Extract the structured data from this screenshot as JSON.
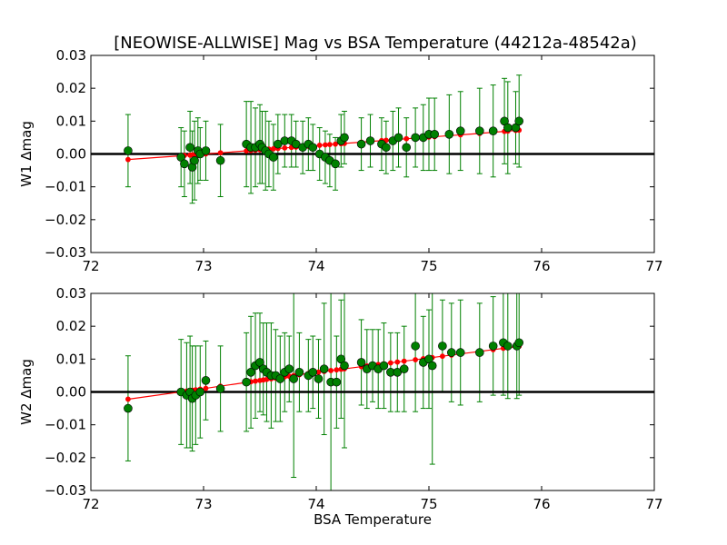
{
  "chart_data": {
    "type": "scatter",
    "title": "[NEOWISE-ALLWISE] Mag vs BSA Temperature (44212a-48542a)",
    "xlabel": "BSA Temperature",
    "xlim": [
      72,
      77
    ],
    "xticks": [
      "72",
      "73",
      "74",
      "75",
      "76",
      "77"
    ],
    "colors": {
      "points": "#008000",
      "errorbars": "#008000",
      "fit": "#ff0000",
      "zero_line": "#000000"
    },
    "panels": [
      {
        "ylabel": "W1 Δmag",
        "ylim": [
          -0.03,
          0.03
        ],
        "yticks": [
          "−0.03",
          "−0.02",
          "−0.01",
          "0.00",
          "0.01",
          "0.02",
          "0.03"
        ],
        "points": [
          [
            72.33,
            0.001,
            0.011
          ],
          [
            72.8,
            -0.001,
            0.009
          ],
          [
            72.83,
            -0.003,
            0.01
          ],
          [
            72.88,
            0.002,
            0.011
          ],
          [
            72.9,
            -0.004,
            0.011
          ],
          [
            72.92,
            -0.002,
            0.012
          ],
          [
            72.95,
            0.001,
            0.01
          ],
          [
            72.97,
            0.0,
            0.008
          ],
          [
            73.02,
            0.001,
            0.009
          ],
          [
            73.15,
            -0.002,
            0.011
          ],
          [
            73.38,
            0.003,
            0.013
          ],
          [
            73.42,
            0.002,
            0.014
          ],
          [
            73.46,
            0.002,
            0.012
          ],
          [
            73.5,
            0.003,
            0.012
          ],
          [
            73.52,
            0.002,
            0.011
          ],
          [
            73.55,
            0.001,
            0.012
          ],
          [
            73.58,
            0.0,
            0.01
          ],
          [
            73.62,
            -0.001,
            0.01
          ],
          [
            73.66,
            0.003,
            0.009
          ],
          [
            73.72,
            0.004,
            0.008
          ],
          [
            73.78,
            0.004,
            0.008
          ],
          [
            73.82,
            0.003,
            0.007
          ],
          [
            73.88,
            0.002,
            0.008
          ],
          [
            73.93,
            0.003,
            0.008
          ],
          [
            73.97,
            0.002,
            0.007
          ],
          [
            74.03,
            0.0,
            0.008
          ],
          [
            74.08,
            -0.001,
            0.008
          ],
          [
            74.12,
            -0.002,
            0.008
          ],
          [
            74.17,
            -0.003,
            0.008
          ],
          [
            74.22,
            0.004,
            0.008
          ],
          [
            74.25,
            0.005,
            0.008
          ],
          [
            74.4,
            0.003,
            0.008
          ],
          [
            74.48,
            0.004,
            0.008
          ],
          [
            74.58,
            0.003,
            0.008
          ],
          [
            74.62,
            0.002,
            0.008
          ],
          [
            74.68,
            0.004,
            0.009
          ],
          [
            74.73,
            0.005,
            0.009
          ],
          [
            74.8,
            0.002,
            0.009
          ],
          [
            74.88,
            0.005,
            0.009
          ],
          [
            74.95,
            0.005,
            0.01
          ],
          [
            75.0,
            0.006,
            0.011
          ],
          [
            75.05,
            0.006,
            0.011
          ],
          [
            75.18,
            0.006,
            0.012
          ],
          [
            75.28,
            0.007,
            0.012
          ],
          [
            75.45,
            0.007,
            0.013
          ],
          [
            75.57,
            0.007,
            0.014
          ],
          [
            75.67,
            0.01,
            0.013
          ],
          [
            75.7,
            0.008,
            0.014
          ],
          [
            75.77,
            0.008,
            0.011
          ],
          [
            75.8,
            0.01,
            0.014
          ]
        ],
        "fit": [
          [
            72.33,
            -0.0017
          ],
          [
            72.9,
            -0.0003
          ],
          [
            73.4,
            0.001
          ],
          [
            73.9,
            0.0023
          ],
          [
            74.4,
            0.0036
          ],
          [
            74.9,
            0.0049
          ],
          [
            75.4,
            0.0061
          ],
          [
            75.82,
            0.0073
          ]
        ]
      },
      {
        "ylabel": "W2 Δmag",
        "ylim": [
          -0.03,
          0.03
        ],
        "yticks": [
          "−0.03",
          "−0.02",
          "−0.01",
          "0.00",
          "0.01",
          "0.02",
          "0.03"
        ],
        "points": [
          [
            72.33,
            -0.005,
            0.016
          ],
          [
            72.8,
            0.0,
            0.016
          ],
          [
            72.85,
            -0.001,
            0.016
          ],
          [
            72.88,
            0.0,
            0.017
          ],
          [
            72.9,
            -0.002,
            0.016
          ],
          [
            72.93,
            -0.001,
            0.015
          ],
          [
            72.97,
            0.0,
            0.014
          ],
          [
            73.02,
            0.0035,
            0.012
          ],
          [
            73.15,
            0.001,
            0.013
          ],
          [
            73.38,
            0.003,
            0.015
          ],
          [
            73.42,
            0.006,
            0.017
          ],
          [
            73.46,
            0.008,
            0.016
          ],
          [
            73.5,
            0.009,
            0.015
          ],
          [
            73.53,
            0.007,
            0.014
          ],
          [
            73.56,
            0.006,
            0.015
          ],
          [
            73.6,
            0.005,
            0.016
          ],
          [
            73.64,
            0.005,
            0.014
          ],
          [
            73.68,
            0.004,
            0.013
          ],
          [
            73.72,
            0.006,
            0.012
          ],
          [
            73.76,
            0.007,
            0.01
          ],
          [
            73.8,
            0.004,
            0.03
          ],
          [
            73.85,
            0.006,
            0.012
          ],
          [
            73.93,
            0.005,
            0.011
          ],
          [
            73.97,
            0.006,
            0.011
          ],
          [
            74.02,
            0.004,
            0.012
          ],
          [
            74.07,
            0.007,
            0.02
          ],
          [
            74.13,
            0.003,
            0.035
          ],
          [
            74.18,
            0.003,
            0.014
          ],
          [
            74.22,
            0.01,
            0.018
          ],
          [
            74.25,
            0.008,
            0.025
          ],
          [
            74.4,
            0.009,
            0.013
          ],
          [
            74.45,
            0.007,
            0.012
          ],
          [
            74.5,
            0.008,
            0.011
          ],
          [
            74.55,
            0.007,
            0.012
          ],
          [
            74.6,
            0.008,
            0.013
          ],
          [
            74.66,
            0.006,
            0.012
          ],
          [
            74.72,
            0.006,
            0.012
          ],
          [
            74.78,
            0.007,
            0.013
          ],
          [
            74.88,
            0.014,
            0.02
          ],
          [
            74.95,
            0.009,
            0.014
          ],
          [
            75.0,
            0.01,
            0.015
          ],
          [
            75.03,
            0.008,
            0.03
          ],
          [
            75.12,
            0.014,
            0.014
          ],
          [
            75.2,
            0.012,
            0.015
          ],
          [
            75.28,
            0.012,
            0.016
          ],
          [
            75.45,
            0.012,
            0.015
          ],
          [
            75.57,
            0.014,
            0.015
          ],
          [
            75.66,
            0.015,
            0.016
          ],
          [
            75.7,
            0.014,
            0.016
          ],
          [
            75.78,
            0.014,
            0.016
          ],
          [
            75.8,
            0.015,
            0.016
          ]
        ],
        "fit": [
          [
            72.33,
            -0.0022
          ],
          [
            72.9,
            0.0005
          ],
          [
            73.4,
            0.003
          ],
          [
            73.9,
            0.0055
          ],
          [
            74.4,
            0.0077
          ],
          [
            74.9,
            0.0099
          ],
          [
            75.4,
            0.0121
          ],
          [
            75.82,
            0.014
          ]
        ]
      }
    ]
  }
}
